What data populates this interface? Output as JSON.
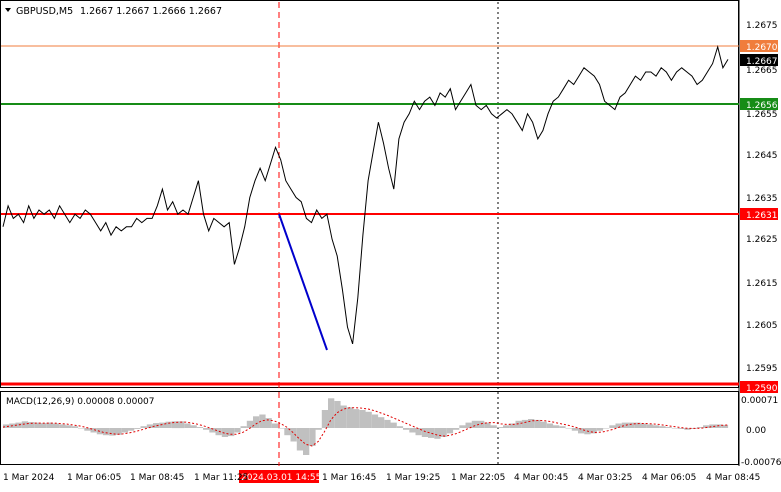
{
  "header": {
    "symbol": "GBPUSD,M5",
    "ohlc": "1.2667 1.2667 1.2666 1.2667"
  },
  "macd": {
    "label": "MACD(12,26,9) 0.00008 0.00007",
    "ticks": [
      "0.00071",
      "0.00",
      "-0.00076"
    ]
  },
  "price_axis": {
    "ticks": [
      "1.2675",
      "1.2665",
      "1.2655",
      "1.2645",
      "1.2635",
      "1.2625",
      "1.2615",
      "1.2605",
      "1.2595"
    ]
  },
  "levels": [
    {
      "label": "1.2670",
      "value": 1.267,
      "color": "#f07d3c"
    },
    {
      "label": "1.2667",
      "value": 1.2667,
      "color": "#000000"
    },
    {
      "label": "1.2656",
      "value": 1.2656,
      "color": "#168c16"
    },
    {
      "label": "1.2631",
      "value": 1.2631,
      "color": "#ff0000"
    },
    {
      "label": "1.2590",
      "value": 1.259,
      "color": "#ff0000"
    }
  ],
  "time_axis": {
    "ticks": [
      "1 Mar 2024",
      "1 Mar 06:05",
      "1 Mar 08:45",
      "1 Mar 11:25",
      "1 Mar 16:45",
      "1 Mar 19:25",
      "1 Mar 22:05",
      "4 Mar 00:45",
      "4 Mar 03:25",
      "4 Mar 06:05",
      "4 Mar 08:45"
    ],
    "highlight": "2024.03.01 14:55"
  },
  "chart_data": {
    "type": "line",
    "y_range": [
      1.25887,
      1.26812
    ],
    "price": [
      1.2627,
      1.2632,
      1.2629,
      1.263,
      1.2628,
      1.2632,
      1.2629,
      1.2631,
      1.263,
      1.2631,
      1.2629,
      1.2632,
      1.263,
      1.2628,
      1.263,
      1.2629,
      1.2631,
      1.263,
      1.2628,
      1.2626,
      1.2628,
      1.2625,
      1.2627,
      1.2626,
      1.2627,
      1.2627,
      1.2629,
      1.2628,
      1.2629,
      1.2629,
      1.2632,
      1.2636,
      1.2631,
      1.2633,
      1.263,
      1.2631,
      1.263,
      1.2634,
      1.2638,
      1.263,
      1.2626,
      1.2629,
      1.2628,
      1.2627,
      1.2628,
      1.2618,
      1.2622,
      1.2627,
      1.2634,
      1.2638,
      1.2641,
      1.2638,
      1.2642,
      1.2646,
      1.2643,
      1.2638,
      1.2636,
      1.2634,
      1.2633,
      1.2629,
      1.2628,
      1.2631,
      1.2629,
      1.263,
      1.2624,
      1.262,
      1.2612,
      1.2603,
      1.2599,
      1.261,
      1.2625,
      1.2638,
      1.2645,
      1.2652,
      1.2647,
      1.2641,
      1.2636,
      1.2648,
      1.2652,
      1.2654,
      1.2657,
      1.2655,
      1.2657,
      1.2658,
      1.2656,
      1.2659,
      1.2658,
      1.266,
      1.2655,
      1.2657,
      1.2659,
      1.2661,
      1.2656,
      1.2655,
      1.2656,
      1.2654,
      1.2653,
      1.2654,
      1.2655,
      1.2654,
      1.2652,
      1.265,
      1.2654,
      1.2652,
      1.2648,
      1.265,
      1.2654,
      1.2657,
      1.2658,
      1.266,
      1.2662,
      1.2661,
      1.2663,
      1.2665,
      1.2664,
      1.2663,
      1.2661,
      1.2657,
      1.2656,
      1.2655,
      1.2658,
      1.2659,
      1.2661,
      1.2663,
      1.2662,
      1.2664,
      1.2664,
      1.2663,
      1.2665,
      1.2664,
      1.2662,
      1.2664,
      1.2665,
      1.2664,
      1.2663,
      1.2661,
      1.2662,
      1.2664,
      1.2666,
      1.267,
      1.2665,
      1.2667
    ],
    "macd_hist": [
      8e-05,
      0.0001,
      0.00012,
      0.00015,
      0.00013,
      0.00012,
      0.00011,
      0.00012,
      0.0001,
      8e-05,
      6e-05,
      4e-05,
      0.0,
      -6e-05,
      -0.0001,
      -0.00014,
      -0.00016,
      -0.00017,
      -0.00015,
      -0.0001,
      -6e-05,
      -2e-05,
      4e-05,
      8e-05,
      0.00011,
      0.00012,
      0.00014,
      0.00015,
      0.00015,
      0.0001,
      6e-05,
      2e-05,
      -4e-05,
      -0.0001,
      -0.00016,
      -0.0002,
      -0.00018,
      -0.0001,
      4e-05,
      0.00016,
      0.00026,
      0.0003,
      0.00022,
      0.0001,
      0.0,
      -0.00016,
      -0.0003,
      -0.0005,
      -0.0006,
      -0.0004,
      -4e-05,
      0.0004,
      0.00066,
      0.0006,
      0.0005,
      0.00046,
      0.00042,
      0.0004,
      0.00036,
      0.0003,
      0.00024,
      0.00018,
      0.00012,
      4e-05,
      -4e-05,
      -0.0001,
      -0.00016,
      -0.0002,
      -0.00022,
      -0.00024,
      -0.0002,
      -0.00012,
      -4e-05,
      6e-05,
      0.00012,
      0.00016,
      0.00016,
      0.00012,
      6e-05,
      2e-05,
      6e-05,
      0.0001,
      0.00016,
      0.00018,
      0.0002,
      0.00018,
      0.00014,
      0.0001,
      6e-05,
      4e-05,
      0.0,
      -6e-05,
      -0.00012,
      -0.00014,
      -0.00012,
      -6e-05,
      0.0,
      6e-05,
      0.0001,
      0.00012,
      0.00012,
      0.00012,
      0.0001,
      8e-05,
      6e-05,
      4e-05,
      2e-05,
      0.0,
      -2e-05,
      -4e-05,
      -2e-05,
      2e-05,
      6e-05,
      8e-05,
      8e-05,
      7e-05
    ],
    "macd_signal": [
      2e-05,
      4e-05,
      6e-05,
      8e-05,
      0.0001,
      0.00011,
      0.00011,
      0.00011,
      0.00011,
      0.0001,
      9e-05,
      7e-05,
      5e-05,
      2e-05,
      -2e-05,
      -6e-05,
      -0.0001,
      -0.00012,
      -0.00014,
      -0.00013,
      -0.00011,
      -8e-05,
      -4e-05,
      0.0,
      4e-05,
      7e-05,
      0.0001,
      0.00012,
      0.00013,
      0.00013,
      0.00011,
      8e-05,
      4e-05,
      -1e-05,
      -6e-05,
      -0.00011,
      -0.00014,
      -0.00014,
      -0.0001,
      -2e-05,
      8e-05,
      0.00016,
      0.00018,
      0.00016,
      0.0001,
      2e-05,
      -0.0001,
      -0.00024,
      -0.00036,
      -0.0004,
      -0.0003,
      -8e-05,
      0.00018,
      0.00034,
      0.00042,
      0.00045,
      0.00045,
      0.00044,
      0.00042,
      0.00038,
      0.00033,
      0.00028,
      0.00022,
      0.00016,
      0.0001,
      4e-05,
      -2e-05,
      -8e-05,
      -0.00012,
      -0.00016,
      -0.00018,
      -0.00016,
      -0.00012,
      -6e-05,
      0.0,
      6e-05,
      0.0001,
      0.00012,
      0.00012,
      9e-05,
      8e-05,
      8e-05,
      0.0001,
      0.00013,
      0.00016,
      0.00017,
      0.00016,
      0.00014,
      0.00011,
      8e-05,
      5e-05,
      1e-05,
      -4e-05,
      -8e-05,
      -0.0001,
      -9e-05,
      -6e-05,
      -2e-05,
      3e-05,
      7e-05,
      9e-05,
      0.0001,
      0.0001,
      9e-05,
      8e-05,
      6e-05,
      4e-05,
      2e-05,
      0.0,
      -1e-05,
      -1e-05,
      0.0,
      2e-05,
      4e-05,
      6e-05,
      7e-05
    ]
  }
}
